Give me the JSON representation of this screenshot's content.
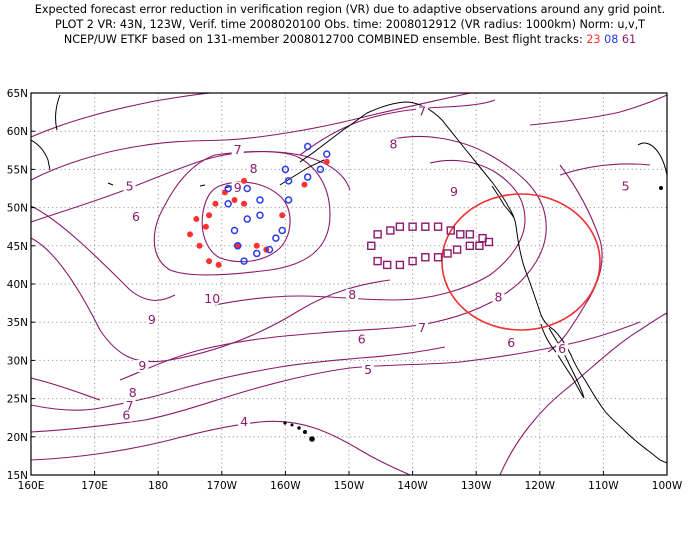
{
  "title": {
    "line1": "Expected forecast error reduction in verification region (VR) due to adaptive observations around any grid point.",
    "line2": "PLOT 2 VR: 43N, 123W, Verif. time 2008020100 Obs. time: 2008012912 (VR radius: 1000km) Norm: u,v,T",
    "line3_prefix": "NCEP/UW ETKF based on 131-member 2008012700 COMBINED ensemble.  Best flight tracks:",
    "track_a": "23",
    "track_b": "08",
    "track_c": "61"
  },
  "axes": {
    "lat_labels": [
      "15N",
      "20N",
      "25N",
      "30N",
      "35N",
      "40N",
      "45N",
      "50N",
      "55N",
      "60N",
      "65N"
    ],
    "lon_labels": [
      "160E",
      "170E",
      "180",
      "170W",
      "160W",
      "150W",
      "140W",
      "130W",
      "120W",
      "110W",
      "100W"
    ]
  },
  "colors": {
    "contour": "#8b1a6b",
    "track_a": "#ff3030",
    "track_b": "#2a3ce8",
    "track_c": "#8b1a6b",
    "vr_circle": "#ee3030",
    "coast": "#000000",
    "grid": "#9a9a9a"
  },
  "contour_labels": [
    {
      "text": "5",
      "lon": 175.5,
      "lat": 52.5
    },
    {
      "text": "6",
      "lon": 176.5,
      "lat": 48.5
    },
    {
      "text": "7",
      "lon": 192.5,
      "lat": 57.3
    },
    {
      "text": "8",
      "lon": 195.0,
      "lat": 54.8
    },
    {
      "text": "9",
      "lon": 192.5,
      "lat": 52.3
    },
    {
      "text": "10",
      "lon": 188.5,
      "lat": 37.8
    },
    {
      "text": "9",
      "lon": 179.0,
      "lat": 35.0
    },
    {
      "text": "7",
      "lon": 221.5,
      "lat": 62.3
    },
    {
      "text": "8",
      "lon": 217.0,
      "lat": 58.0
    },
    {
      "text": "9",
      "lon": 226.5,
      "lat": 51.8
    },
    {
      "text": "8",
      "lon": 210.5,
      "lat": 38.3
    },
    {
      "text": "7",
      "lon": 221.5,
      "lat": 34.0
    },
    {
      "text": "6",
      "lon": 212.0,
      "lat": 32.5
    },
    {
      "text": "5",
      "lon": 213.0,
      "lat": 28.5
    },
    {
      "text": "8",
      "lon": 233.5,
      "lat": 38.0
    },
    {
      "text": "6",
      "lon": 235.5,
      "lat": 32.0
    },
    {
      "text": "6",
      "lon": 243.5,
      "lat": 31.2
    },
    {
      "text": "5",
      "lon": 253.5,
      "lat": 52.5
    },
    {
      "text": "9",
      "lon": 177.5,
      "lat": 29.0
    },
    {
      "text": "8",
      "lon": 176.0,
      "lat": 25.5
    },
    {
      "text": "7",
      "lon": 175.5,
      "lat": 23.8
    },
    {
      "text": "6",
      "lon": 175.0,
      "lat": 22.5
    },
    {
      "text": "4",
      "lon": 193.5,
      "lat": 21.7
    }
  ],
  "tracks": {
    "a": [
      [
        193.5,
        50.5
      ],
      [
        192.0,
        51.0
      ],
      [
        190.5,
        52.0
      ],
      [
        189.0,
        50.5
      ],
      [
        188.0,
        49.0
      ],
      [
        187.5,
        47.5
      ],
      [
        186.0,
        48.5
      ],
      [
        185.0,
        46.5
      ],
      [
        186.5,
        45.0
      ],
      [
        188.0,
        43.0
      ],
      [
        189.5,
        42.5
      ],
      [
        192.5,
        45.0
      ],
      [
        195.5,
        45.0
      ],
      [
        197.0,
        44.5
      ],
      [
        199.5,
        49.0
      ],
      [
        203.0,
        53.0
      ],
      [
        206.5,
        56.0
      ],
      [
        193.5,
        53.5
      ]
    ],
    "b": [
      [
        191.0,
        50.5
      ],
      [
        191.0,
        52.5
      ],
      [
        194.0,
        52.5
      ],
      [
        196.0,
        51.0
      ],
      [
        196.0,
        49.0
      ],
      [
        194.0,
        48.5
      ],
      [
        192.0,
        47.0
      ],
      [
        192.5,
        45.0
      ],
      [
        193.5,
        43.0
      ],
      [
        195.5,
        44.0
      ],
      [
        197.5,
        44.5
      ],
      [
        198.5,
        46.0
      ],
      [
        199.5,
        47.0
      ],
      [
        200.5,
        51.0
      ],
      [
        200.5,
        53.5
      ],
      [
        200.0,
        55.0
      ],
      [
        203.5,
        54.0
      ],
      [
        205.5,
        55.0
      ],
      [
        206.5,
        57.0
      ],
      [
        203.5,
        58.0
      ]
    ],
    "c": [
      [
        213.5,
        45.0
      ],
      [
        214.5,
        46.5
      ],
      [
        216.5,
        47.0
      ],
      [
        218.0,
        47.5
      ],
      [
        220.0,
        47.5
      ],
      [
        222.0,
        47.5
      ],
      [
        224.0,
        47.5
      ],
      [
        226.0,
        47.0
      ],
      [
        227.5,
        46.5
      ],
      [
        229.0,
        46.5
      ],
      [
        231.0,
        46.0
      ],
      [
        232.0,
        45.5
      ],
      [
        230.5,
        45.0
      ],
      [
        229.0,
        45.0
      ],
      [
        227.0,
        44.5
      ],
      [
        225.5,
        44.0
      ],
      [
        224.0,
        43.5
      ],
      [
        222.0,
        43.5
      ],
      [
        220.0,
        43.0
      ],
      [
        218.0,
        42.5
      ],
      [
        216.0,
        42.5
      ],
      [
        214.5,
        43.0
      ]
    ]
  }
}
